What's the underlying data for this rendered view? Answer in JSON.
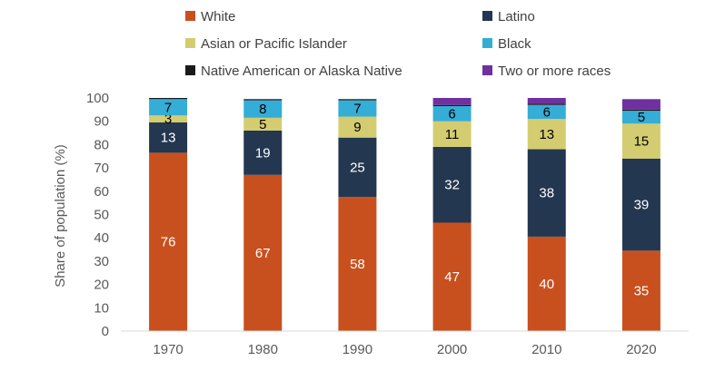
{
  "chart_data": {
    "type": "bar",
    "stacked": true,
    "categories": [
      "1970",
      "1980",
      "1990",
      "2000",
      "2010",
      "2020"
    ],
    "ylabel": "Share of population (%)",
    "ylim": [
      0,
      100
    ],
    "yticks": [
      0,
      10,
      20,
      30,
      40,
      50,
      60,
      70,
      80,
      90,
      100
    ],
    "legend_position": "top",
    "series": [
      {
        "name": "White",
        "color": "#C8501E",
        "label_color": "#ffffff",
        "values": [
          76.5,
          67,
          57.5,
          46.5,
          40.5,
          34.5
        ],
        "labels": [
          "76",
          "67",
          "58",
          "47",
          "40",
          "35"
        ]
      },
      {
        "name": "Latino",
        "color": "#243750",
        "label_color": "#ffffff",
        "values": [
          13,
          19,
          25.5,
          32.5,
          37.5,
          39.5
        ],
        "labels": [
          "13",
          "19",
          "25",
          "32",
          "38",
          "39"
        ]
      },
      {
        "name": "Asian or Pacific Islander",
        "color": "#D4CC70",
        "label_color": "#000000",
        "values": [
          3,
          5.5,
          9,
          11,
          13,
          15
        ],
        "labels": [
          "3",
          "5",
          "9",
          "11",
          "13",
          "15"
        ]
      },
      {
        "name": "Black",
        "color": "#34ADD7",
        "label_color": "#000000",
        "values": [
          7,
          7.5,
          7,
          6.5,
          6,
          5.5
        ],
        "labels": [
          "7",
          "8",
          "7",
          "6",
          "6",
          "5"
        ]
      },
      {
        "name": "Native American or Alaska Native",
        "color": "#1A1A1A",
        "label_color": "#ffffff",
        "values": [
          0.5,
          0.5,
          0.5,
          0.5,
          0.5,
          0.5
        ],
        "labels": [
          "",
          "",
          "",
          "",
          "",
          ""
        ]
      },
      {
        "name": "Two or more races",
        "color": "#7030A0",
        "label_color": "#ffffff",
        "values": [
          0,
          0,
          0,
          3,
          2.5,
          4.5
        ],
        "labels": [
          "",
          "",
          "",
          "",
          "",
          ""
        ]
      }
    ]
  }
}
